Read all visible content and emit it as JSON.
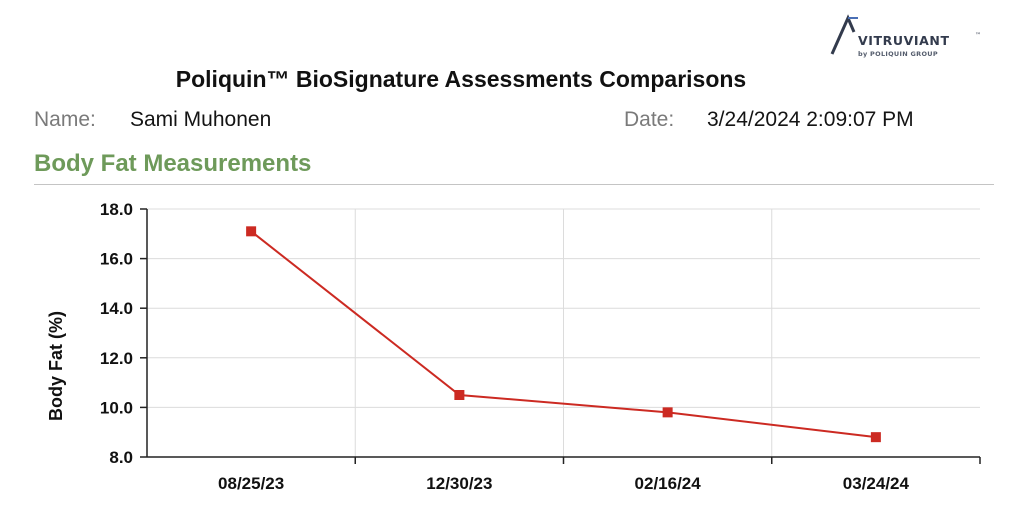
{
  "brand": {
    "name": "VITRUVIANT",
    "trademark": "™",
    "tagline": "by POLIQUIN GROUP",
    "colors": {
      "primary": "#333b4d",
      "accent": "#4a6fb5"
    }
  },
  "report": {
    "title": "Poliquin™ BioSignature Assessments Comparisons",
    "name_label": "Name:",
    "name_value": "Sami Muhonen",
    "date_label": "Date:",
    "date_value": "3/24/2024 2:09:07 PM"
  },
  "section": {
    "title": "Body Fat Measurements",
    "title_color": "#6e9a5a"
  },
  "chart_data": {
    "type": "line",
    "categories": [
      "08/25/23",
      "12/30/23",
      "02/16/24",
      "03/24/24"
    ],
    "series": [
      {
        "values": [
          17.1,
          10.5,
          9.8,
          8.8
        ],
        "color": "#cc2a22",
        "marker": "square"
      }
    ],
    "xlabel": "",
    "ylabel": "Body Fat (%)",
    "ylim": [
      8.0,
      18.0
    ],
    "yticks": [
      "8.0",
      "10.0",
      "12.0",
      "14.0",
      "16.0",
      "18.0"
    ],
    "grid": true
  }
}
